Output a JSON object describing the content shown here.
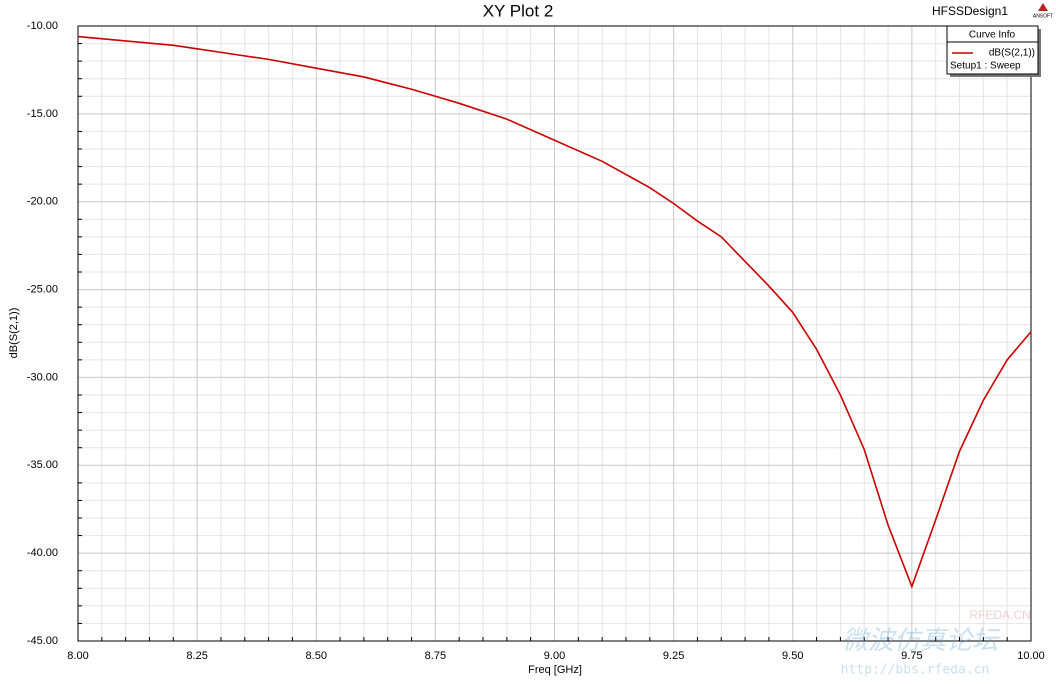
{
  "chart_data": {
    "type": "line",
    "title": "XY Plot 2",
    "design": "HFSSDesign1",
    "logo": "ANSOFT",
    "x_label": "Freq [GHz]",
    "y_label": "dB(S(2,1))",
    "legend_title": "Curve Info",
    "legend_subtitle": "Setup1 : Sweep",
    "legend_position": "upper right",
    "watermark": [
      "微波仿真论坛",
      "RFEDA.CN",
      "http://bbs.rfeda.cn"
    ],
    "x": [
      8.0,
      8.1,
      8.2,
      8.25,
      8.3,
      8.4,
      8.5,
      8.6,
      8.7,
      8.75,
      8.8,
      8.9,
      9.0,
      9.1,
      9.2,
      9.25,
      9.3,
      9.35,
      9.45,
      9.5,
      9.55,
      9.6,
      9.65,
      9.7,
      9.75,
      9.8,
      9.85,
      9.9,
      9.95,
      10.0
    ],
    "series": [
      {
        "name": "dB(S(2,1))",
        "color": "#cc0000",
        "values": [
          -10.6,
          -10.85,
          -11.1,
          -11.3,
          -11.5,
          -11.9,
          -12.4,
          -12.9,
          -13.6,
          -14.0,
          -14.4,
          -15.3,
          -16.5,
          -17.7,
          -19.2,
          -20.1,
          -21.1,
          -22.0,
          -24.8,
          -26.3,
          -28.4,
          -31.0,
          -34.1,
          -38.4,
          -41.9,
          -38.1,
          -34.2,
          -31.3,
          -29.0,
          -27.4
        ]
      }
    ],
    "xlim": [
      8.0,
      10.0
    ],
    "xticks": [
      {
        "value": 8.0,
        "label": "8.00"
      },
      {
        "value": 8.25,
        "label": "8.25"
      },
      {
        "value": 8.5,
        "label": "8.50"
      },
      {
        "value": 8.75,
        "label": "8.75"
      },
      {
        "value": 9.0,
        "label": "9.00"
      },
      {
        "value": 9.25,
        "label": "9.25"
      },
      {
        "value": 9.5,
        "label": "9.50"
      },
      {
        "value": 9.75,
        "label": "9.75"
      },
      {
        "value": 10.0,
        "label": "10.00"
      }
    ],
    "ylim": [
      -45,
      -10
    ],
    "yticks": [
      {
        "value": -10,
        "label": "-10.00"
      },
      {
        "value": -15,
        "label": "-15.00"
      },
      {
        "value": -20,
        "label": "-20.00"
      },
      {
        "value": -25,
        "label": "-25.00"
      },
      {
        "value": -30,
        "label": "-30.00"
      },
      {
        "value": -35,
        "label": "-35.00"
      },
      {
        "value": -40,
        "label": "-40.00"
      },
      {
        "value": -45,
        "label": "-45.00"
      }
    ],
    "grid": true,
    "minor_grid": true
  }
}
